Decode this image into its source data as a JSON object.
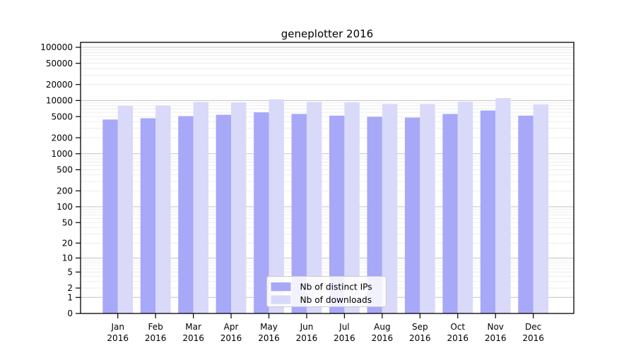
{
  "figure": {
    "background": "#ffffff"
  },
  "chart_data": {
    "type": "bar",
    "title": "geneplotter 2016",
    "xlabel": "",
    "ylabel": "",
    "yscale": "log10(1+x)",
    "grid": true,
    "legend_position": "lower center inside plot",
    "categories": [
      "Jan",
      "Feb",
      "Mar",
      "Apr",
      "May",
      "Jun",
      "Jul",
      "Aug",
      "Sep",
      "Oct",
      "Nov",
      "Dec"
    ],
    "category_year": "2016",
    "series": [
      {
        "name": "Nb of distinct IPs",
        "color": "#a8a8f8",
        "values": [
          4400,
          4650,
          5100,
          5400,
          6000,
          5600,
          5200,
          4950,
          4800,
          5600,
          6500,
          5200
        ]
      },
      {
        "name": "Nb of downloads",
        "color": "#d9d9f9",
        "values": [
          7950,
          8050,
          9400,
          9250,
          10550,
          9400,
          9300,
          8600,
          8600,
          9500,
          11100,
          8500
        ]
      }
    ],
    "yticks": [
      0,
      1,
      2,
      5,
      10,
      20,
      50,
      100,
      200,
      500,
      1000,
      2000,
      5000,
      10000,
      20000,
      50000,
      100000
    ],
    "ylim_top_value": 117000,
    "colors": {
      "major_grid": "#c3c3c3",
      "minor_grid": "#e9e9e9",
      "axis": "#000000",
      "legend_border": "#cccccc",
      "legend_fill": "#ffffff"
    }
  }
}
